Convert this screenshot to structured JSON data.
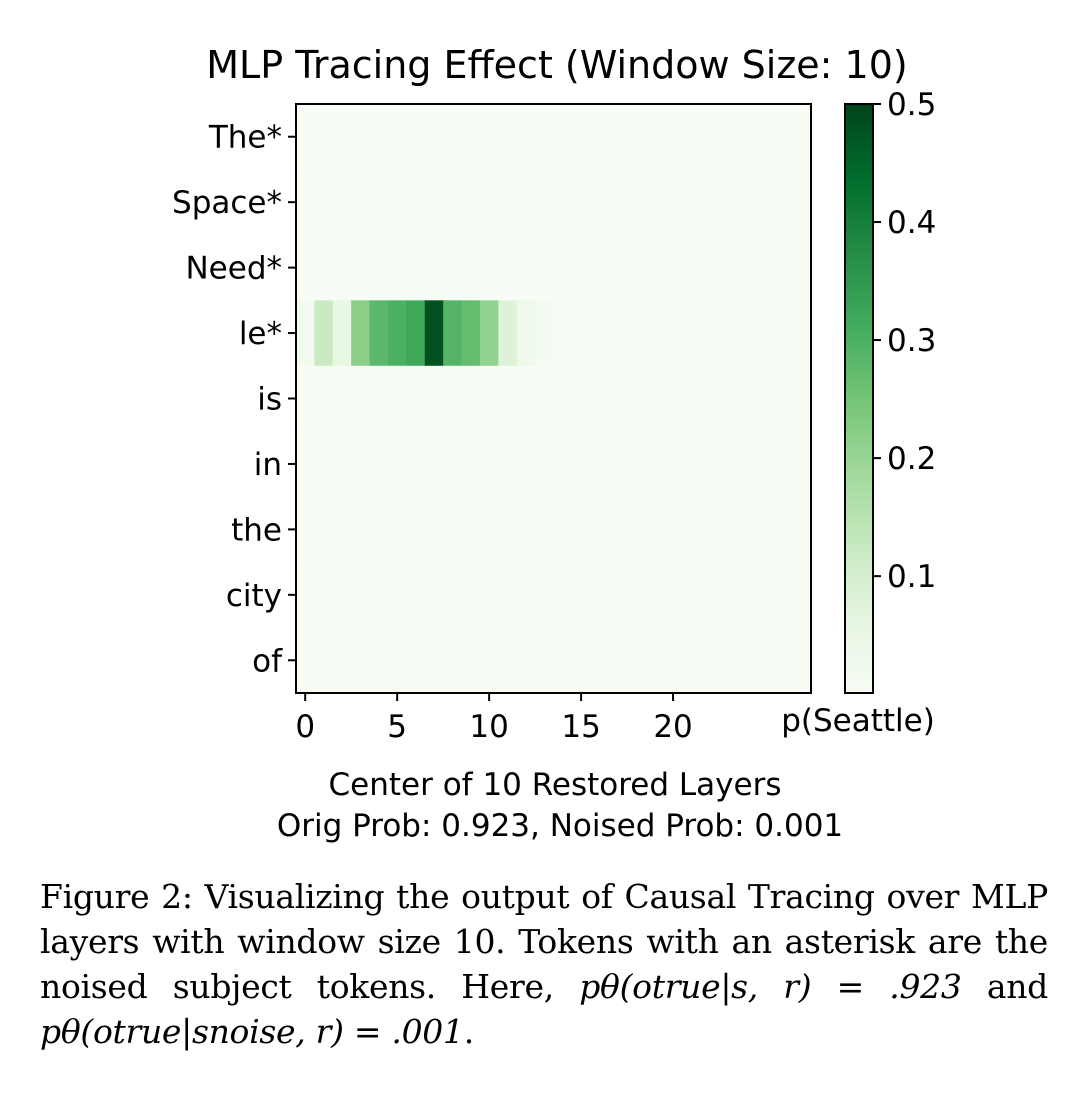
{
  "chart_data": {
    "type": "heatmap",
    "title": "MLP Tracing Effect (Window Size: 10)",
    "xlabel": "Center of 10 Restored Layers",
    "subtitle": "Orig Prob: 0.923, Noised Prob: 0.001",
    "xticks": [
      0,
      5,
      10,
      15,
      20
    ],
    "xlim": [
      -0.5,
      27.5
    ],
    "rows": [
      "The*",
      "Space*",
      "Need*",
      "le*",
      "is",
      "in",
      "the",
      "city",
      "of"
    ],
    "colorbar": {
      "label": "p(Seattle)",
      "range": [
        0.001,
        0.5
      ],
      "ticks": [
        0.1,
        0.2,
        0.3,
        0.4,
        0.5
      ],
      "colormap": "Greens",
      "low_color": "#f7fcf5",
      "high_color": "#00441b"
    },
    "values": [
      [
        0.001,
        0.001,
        0.001,
        0.001,
        0.001,
        0.001,
        0.001,
        0.001,
        0.001,
        0.001,
        0.001,
        0.001,
        0.001,
        0.001,
        0.001,
        0.001,
        0.001,
        0.001,
        0.001,
        0.001,
        0.001,
        0.001,
        0.001,
        0.001,
        0.001,
        0.001,
        0.001,
        0.001
      ],
      [
        0.001,
        0.001,
        0.001,
        0.001,
        0.001,
        0.001,
        0.001,
        0.001,
        0.001,
        0.001,
        0.001,
        0.001,
        0.001,
        0.001,
        0.001,
        0.001,
        0.001,
        0.001,
        0.001,
        0.001,
        0.001,
        0.001,
        0.001,
        0.001,
        0.001,
        0.001,
        0.001,
        0.001
      ],
      [
        0.001,
        0.001,
        0.001,
        0.001,
        0.001,
        0.001,
        0.001,
        0.001,
        0.001,
        0.001,
        0.001,
        0.001,
        0.001,
        0.001,
        0.001,
        0.001,
        0.001,
        0.001,
        0.001,
        0.001,
        0.001,
        0.001,
        0.001,
        0.001,
        0.001,
        0.001,
        0.001,
        0.001
      ],
      [
        0.02,
        0.12,
        0.05,
        0.22,
        0.28,
        0.3,
        0.32,
        0.48,
        0.29,
        0.27,
        0.21,
        0.08,
        0.03,
        0.01,
        0.001,
        0.001,
        0.001,
        0.001,
        0.001,
        0.001,
        0.001,
        0.001,
        0.001,
        0.001,
        0.001,
        0.001,
        0.001,
        0.001
      ],
      [
        0.001,
        0.001,
        0.001,
        0.001,
        0.001,
        0.001,
        0.001,
        0.001,
        0.001,
        0.001,
        0.001,
        0.001,
        0.001,
        0.001,
        0.001,
        0.001,
        0.001,
        0.001,
        0.001,
        0.001,
        0.001,
        0.001,
        0.001,
        0.001,
        0.001,
        0.001,
        0.001,
        0.001
      ],
      [
        0.001,
        0.001,
        0.001,
        0.001,
        0.001,
        0.001,
        0.001,
        0.001,
        0.001,
        0.001,
        0.001,
        0.001,
        0.001,
        0.001,
        0.001,
        0.001,
        0.001,
        0.001,
        0.001,
        0.001,
        0.001,
        0.001,
        0.001,
        0.001,
        0.001,
        0.001,
        0.001,
        0.001
      ],
      [
        0.001,
        0.001,
        0.001,
        0.001,
        0.001,
        0.001,
        0.001,
        0.001,
        0.001,
        0.001,
        0.001,
        0.001,
        0.001,
        0.001,
        0.001,
        0.001,
        0.001,
        0.001,
        0.001,
        0.001,
        0.001,
        0.001,
        0.001,
        0.001,
        0.001,
        0.001,
        0.001,
        0.001
      ],
      [
        0.001,
        0.001,
        0.001,
        0.001,
        0.001,
        0.001,
        0.001,
        0.001,
        0.001,
        0.001,
        0.001,
        0.001,
        0.001,
        0.001,
        0.001,
        0.001,
        0.001,
        0.001,
        0.001,
        0.001,
        0.001,
        0.001,
        0.001,
        0.001,
        0.001,
        0.001,
        0.001,
        0.001
      ],
      [
        0.001,
        0.001,
        0.001,
        0.001,
        0.001,
        0.001,
        0.001,
        0.001,
        0.001,
        0.001,
        0.001,
        0.001,
        0.001,
        0.001,
        0.001,
        0.001,
        0.001,
        0.001,
        0.001,
        0.001,
        0.001,
        0.001,
        0.001,
        0.001,
        0.001,
        0.001,
        0.001,
        0.001
      ]
    ]
  },
  "caption": {
    "lead": "Figure 2:  Visualizing the output of Causal Tracing over MLP layers with window size 10. Tokens with an asterisk are the noised subject tokens. Here, ",
    "eq1": "pθ(otrue|s, r) = .923",
    "mid": " and ",
    "eq2": "pθ(otrue|snoise, r) = .001",
    "end": "."
  }
}
